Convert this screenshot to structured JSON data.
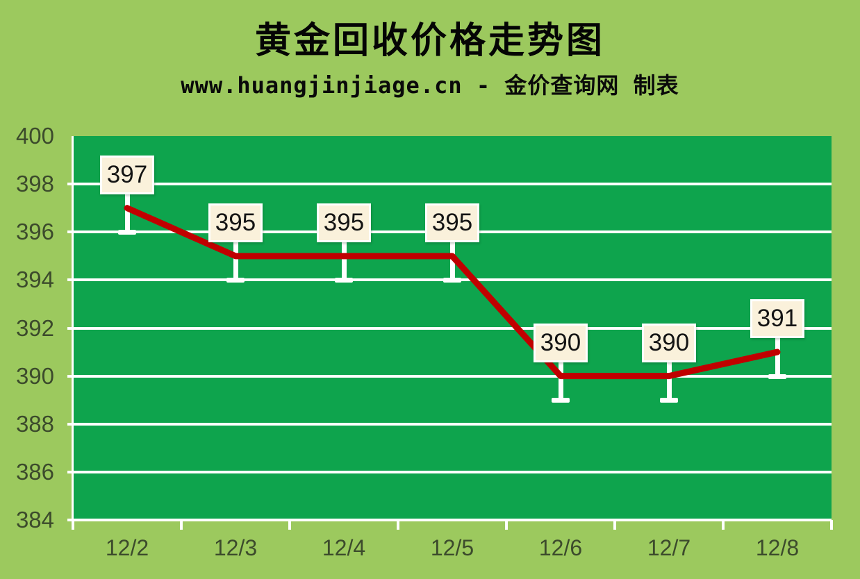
{
  "header": {
    "title": "黄金回收价格走势图",
    "subtitle": "www.huangjinjiage.cn - 金价查询网 制表"
  },
  "chart_data": {
    "type": "line",
    "title": "黄金回收价格走势图",
    "subtitle": "www.huangjinjiage.cn - 金价查询网 制表",
    "categories": [
      "12/2",
      "12/3",
      "12/4",
      "12/5",
      "12/6",
      "12/7",
      "12/8"
    ],
    "values": [
      397,
      395,
      395,
      395,
      390,
      390,
      391
    ],
    "data_labels": [
      "397",
      "395",
      "395",
      "395",
      "390",
      "390",
      "391"
    ],
    "series_name": "黄金回收价格",
    "xlabel": "",
    "ylabel": "",
    "ylim": [
      384,
      400
    ],
    "ytick_step": 2,
    "yticks": [
      400,
      398,
      396,
      394,
      392,
      390,
      388,
      386,
      384
    ],
    "grid": true,
    "legend": false,
    "colors": {
      "page_bg": "#9CC95E",
      "plot_bg": "#0EA44D",
      "gridline": "#FFFFFF",
      "line": "#C00000",
      "label_box_bg": "#FAF1DB",
      "label_box_border": "#FFFFFF",
      "label_text": "#141414",
      "axis_text": "#3C4B2C",
      "title_text": "#050505"
    }
  }
}
